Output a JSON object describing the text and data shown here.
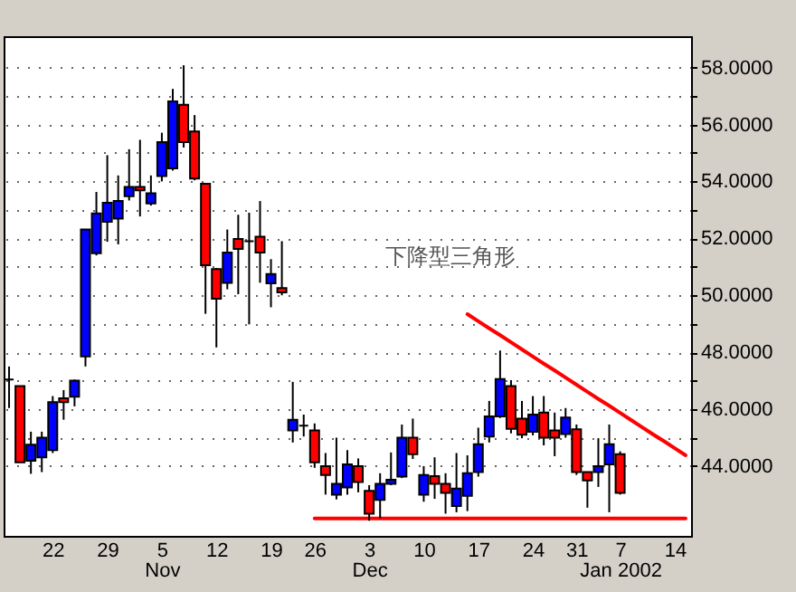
{
  "chart_data": {
    "type": "candlestick",
    "categories": [
      null,
      null,
      null,
      null,
      "22",
      null,
      null,
      null,
      null,
      "29",
      null,
      null,
      null,
      null,
      "5\nNov",
      null,
      null,
      null,
      null,
      "12",
      null,
      null,
      null,
      null,
      "19",
      null,
      null,
      null,
      "26",
      null,
      null,
      null,
      null,
      "3\nDec",
      null,
      null,
      null,
      null,
      "10",
      null,
      null,
      null,
      null,
      "17",
      null,
      null,
      null,
      null,
      "24",
      null,
      null,
      null,
      "31",
      null,
      null,
      null,
      "7\nJan 2002",
      null,
      null,
      null,
      null,
      "14",
      null
    ],
    "ohlc": [
      [
        47.04,
        47.5,
        46.04,
        47.04
      ],
      [
        46.81,
        46.81,
        44.13,
        44.13
      ],
      [
        44.19,
        45.21,
        43.73,
        44.75
      ],
      [
        44.31,
        45.21,
        43.79,
        45.0
      ],
      [
        44.56,
        46.46,
        44.46,
        46.25
      ],
      [
        46.38,
        46.67,
        45.63,
        46.25
      ],
      [
        46.44,
        47.04,
        46.1,
        47.0
      ],
      [
        47.85,
        52.33,
        47.5,
        52.31
      ],
      [
        51.48,
        53.63,
        51.4,
        52.88
      ],
      [
        52.58,
        54.92,
        51.88,
        53.25
      ],
      [
        52.69,
        54.21,
        51.79,
        53.31
      ],
      [
        53.48,
        55.13,
        53.33,
        53.81
      ],
      [
        53.81,
        55.46,
        52.77,
        53.69
      ],
      [
        53.23,
        54.21,
        53.15,
        53.58
      ],
      [
        54.19,
        55.71,
        54.0,
        55.38
      ],
      [
        54.46,
        57.25,
        54.38,
        56.81
      ],
      [
        56.69,
        58.08,
        55.19,
        55.38
      ],
      [
        55.75,
        56.33,
        54.04,
        54.1
      ],
      [
        53.92,
        53.92,
        49.35,
        51.06
      ],
      [
        50.92,
        50.96,
        48.17,
        49.88
      ],
      [
        50.44,
        52.31,
        50.21,
        51.5
      ],
      [
        51.98,
        52.83,
        50.04,
        51.63
      ],
      [
        51.9,
        52.9,
        48.98,
        51.9
      ],
      [
        52.06,
        53.31,
        50.44,
        51.5
      ],
      [
        50.42,
        51.27,
        49.58,
        50.75
      ],
      [
        50.25,
        51.9,
        50.0,
        50.1
      ],
      [
        45.25,
        46.96,
        44.83,
        45.63
      ],
      [
        45.42,
        45.81,
        45.04,
        45.42
      ],
      [
        45.25,
        45.5,
        43.94,
        44.13
      ],
      [
        44.0,
        44.46,
        43.0,
        43.69
      ],
      [
        43.0,
        45.0,
        42.83,
        43.38
      ],
      [
        43.25,
        44.56,
        43.0,
        44.06
      ],
      [
        44.0,
        44.27,
        43.08,
        43.44
      ],
      [
        43.13,
        43.33,
        42.08,
        42.33
      ],
      [
        42.81,
        43.75,
        42.17,
        43.38
      ],
      [
        43.38,
        44.48,
        43.33,
        43.52
      ],
      [
        43.63,
        45.46,
        43.58,
        45.0
      ],
      [
        45.0,
        45.67,
        44.25,
        44.42
      ],
      [
        43.0,
        44.0,
        42.75,
        43.69
      ],
      [
        43.65,
        44.31,
        42.85,
        43.38
      ],
      [
        43.38,
        43.75,
        42.33,
        43.06
      ],
      [
        42.6,
        44.46,
        42.38,
        43.21
      ],
      [
        42.96,
        44.38,
        42.42,
        43.75
      ],
      [
        43.79,
        45.35,
        43.63,
        44.77
      ],
      [
        45.04,
        46.29,
        44.83,
        45.75
      ],
      [
        45.75,
        48.06,
        45.69,
        47.06
      ],
      [
        46.81,
        47.02,
        45.15,
        45.31
      ],
      [
        45.67,
        46.29,
        44.98,
        45.1
      ],
      [
        45.21,
        46.46,
        45.08,
        45.81
      ],
      [
        45.88,
        46.46,
        44.73,
        45.0
      ],
      [
        45.25,
        45.88,
        44.35,
        45.0
      ],
      [
        45.13,
        46.04,
        45.0,
        45.71
      ],
      [
        45.29,
        45.46,
        43.69,
        43.79
      ],
      [
        43.79,
        43.79,
        42.54,
        43.5
      ],
      [
        43.79,
        44.98,
        43.27,
        44.0
      ],
      [
        44.06,
        45.46,
        42.38,
        44.77
      ],
      [
        44.42,
        44.52,
        43.0,
        43.06
      ],
      null,
      null,
      null,
      null,
      null,
      null
    ],
    "colors": [
      "#000000",
      "#ff0000",
      "#0000ff",
      "#0000ff",
      "#0000ff",
      "#ff0000",
      "#0000ff",
      "#0000ff",
      "#0000ff",
      "#0000ff",
      "#0000ff",
      "#0000ff",
      "#ff0000",
      "#0000ff",
      "#0000ff",
      "#0000ff",
      "#ff0000",
      "#ff0000",
      "#ff0000",
      "#ff0000",
      "#0000ff",
      "#ff0000",
      "#000000",
      "#ff0000",
      "#0000ff",
      "#ff0000",
      "#0000ff",
      "#000000",
      "#ff0000",
      "#ff0000",
      "#0000ff",
      "#0000ff",
      "#ff0000",
      "#ff0000",
      "#0000ff",
      "#0000ff",
      "#0000ff",
      "#ff0000",
      "#0000ff",
      "#ff0000",
      "#ff0000",
      "#0000ff",
      "#0000ff",
      "#0000ff",
      "#0000ff",
      "#0000ff",
      "#ff0000",
      "#ff0000",
      "#0000ff",
      "#ff0000",
      "#ff0000",
      "#0000ff",
      "#ff0000",
      "#ff0000",
      "#0000ff",
      "#0000ff",
      "#ff0000",
      null,
      null,
      null,
      null,
      null,
      null
    ],
    "series": [
      {
        "type": "line",
        "color": "#ff0000",
        "values": [
          null,
          null,
          null,
          null,
          null,
          null,
          null,
          null,
          null,
          null,
          null,
          null,
          null,
          null,
          null,
          null,
          null,
          null,
          null,
          null,
          null,
          null,
          null,
          null,
          null,
          null,
          null,
          null,
          null,
          null,
          null,
          null,
          null,
          null,
          null,
          null,
          null,
          null,
          null,
          null,
          null,
          null,
          49.34,
          49.09,
          48.84,
          48.6,
          48.35,
          48.1,
          47.85,
          47.6,
          47.36,
          47.11,
          46.86,
          46.61,
          46.36,
          46.12,
          45.87,
          45.62,
          45.37,
          45.12,
          44.88,
          44.63,
          44.38
        ]
      },
      {
        "type": "line",
        "color": "#ff0000",
        "values": [
          null,
          null,
          null,
          null,
          null,
          null,
          null,
          null,
          null,
          null,
          null,
          null,
          null,
          null,
          null,
          null,
          null,
          null,
          null,
          null,
          null,
          null,
          null,
          null,
          null,
          null,
          null,
          null,
          42.16,
          42.16,
          42.16,
          42.16,
          42.16,
          42.16,
          42.16,
          42.16,
          42.16,
          42.16,
          42.16,
          42.16,
          42.16,
          42.16,
          42.16,
          42.16,
          42.16,
          42.16,
          42.16,
          42.16,
          42.16,
          42.16,
          42.16,
          42.16,
          42.16,
          42.16,
          42.16,
          42.16,
          42.16,
          42.16,
          42.16,
          42.16,
          42.16,
          42.16,
          42.16
        ]
      }
    ],
    "ylim": [
      41.55,
      59.1
    ],
    "yticks": [
      {
        "value": 44,
        "label": "44.0000"
      },
      {
        "value": 45,
        "label": null
      },
      {
        "value": 46,
        "label": "46.0000"
      },
      {
        "value": 47,
        "label": null
      },
      {
        "value": 48,
        "label": "48.0000"
      },
      {
        "value": 49,
        "label": null
      },
      {
        "value": 50,
        "label": "50.0000"
      },
      {
        "value": 51,
        "label": null
      },
      {
        "value": 52,
        "label": "52.0000"
      },
      {
        "value": 53,
        "label": null
      },
      {
        "value": 54,
        "label": "54.0000"
      },
      {
        "value": 55,
        "label": null
      },
      {
        "value": 56,
        "label": "56.0000"
      },
      {
        "value": 57,
        "label": null
      },
      {
        "value": 58,
        "label": "58.0000"
      }
    ],
    "grid": "y",
    "annotations": [
      "下降型三角形"
    ]
  }
}
